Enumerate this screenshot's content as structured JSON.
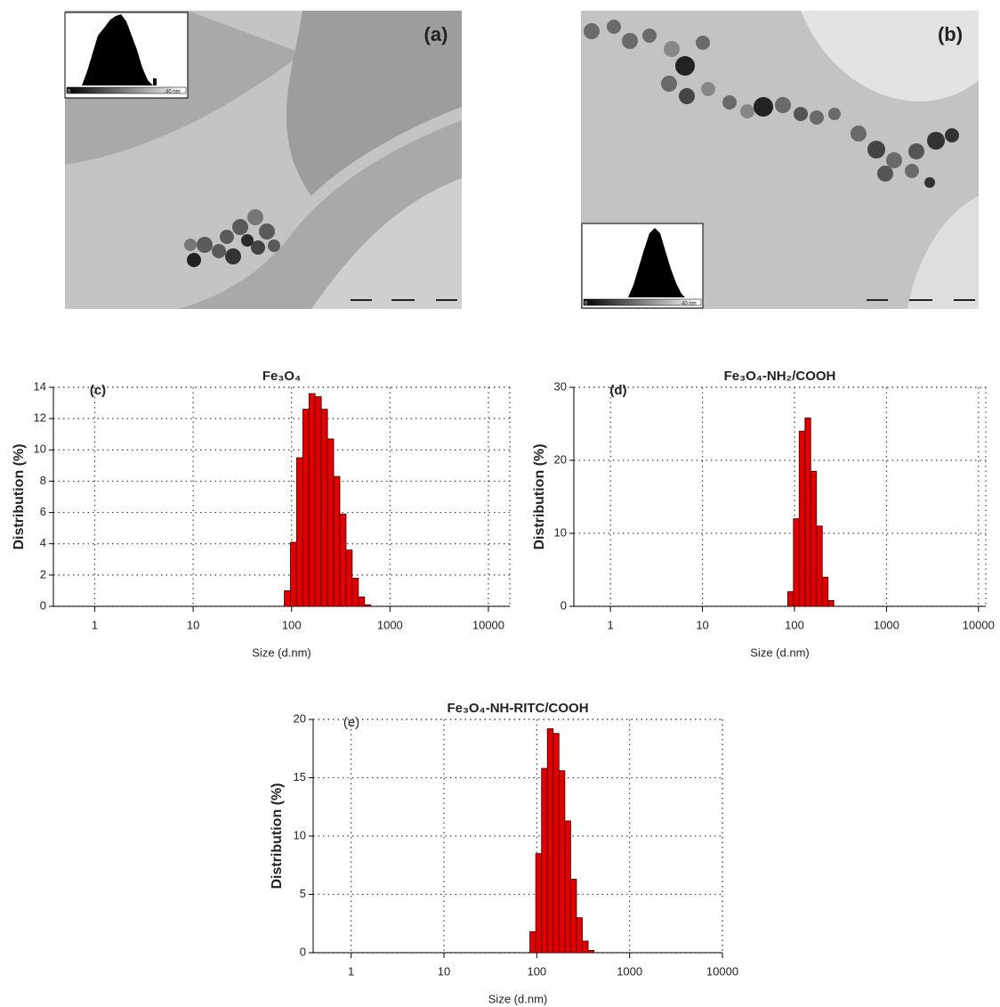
{
  "images": [
    {
      "label": "(a)",
      "inset_ticks": [
        "0",
        "40 nm"
      ]
    },
    {
      "label": "(b)",
      "inset_ticks": [
        "0",
        "40 nm"
      ]
    }
  ],
  "chart_data": [
    {
      "type": "histogram",
      "title": "Fe₃O₄",
      "annotation": "(c)",
      "x_label": "Size (d.nm)",
      "y_label": "Distribution (%)",
      "log_x": true,
      "grid": true,
      "color": "#e00000",
      "bins": [
        84.3,
        97.4,
        112.5,
        130.0,
        150.3,
        173.6,
        200.7,
        231.9,
        268.0,
        309.7,
        357.9,
        413.5,
        477.8,
        552.2,
        638.0
      ],
      "values": [
        1.0,
        4.1,
        9.5,
        12.6,
        13.6,
        13.4,
        12.6,
        10.7,
        8.3,
        5.9,
        3.6,
        1.8,
        0.6,
        0.1
      ],
      "xlim": [
        0.38,
        16500
      ],
      "xticks": [
        1,
        10,
        100,
        1000,
        10000
      ],
      "ylim": [
        0,
        14
      ],
      "yticks": [
        0,
        2,
        4,
        6,
        8,
        10,
        12,
        14
      ]
    },
    {
      "type": "histogram",
      "title": "Fe₃O₄-NH₂/COOH",
      "annotation": "(d)",
      "x_label": "Size (d.nm)",
      "y_label": "Distribution (%)",
      "log_x": true,
      "grid": true,
      "color": "#e00000",
      "bins": [
        84.3,
        97.4,
        112.5,
        130.0,
        150.3,
        173.6,
        200.7,
        231.9,
        268.0
      ],
      "values": [
        2.0,
        12.0,
        24.0,
        25.8,
        18.5,
        11.0,
        4.0,
        0.8
      ],
      "xlim": [
        0.4,
        12000
      ],
      "xticks": [
        1,
        10,
        100,
        1000,
        10000
      ],
      "ylim": [
        0,
        30
      ],
      "yticks": [
        0,
        10,
        20,
        30
      ]
    },
    {
      "type": "histogram",
      "title": "Fe₃O₄-NH-RITC/COOH",
      "annotation": "(e)",
      "x_label": "Size (d.nm)",
      "y_label": "Distribution (%)",
      "log_x": true,
      "grid": true,
      "color": "#e00000",
      "bins": [
        84.3,
        97.4,
        112.5,
        130.0,
        150.3,
        173.6,
        200.7,
        231.9,
        268.0,
        309.7,
        357.9,
        413.5
      ],
      "values": [
        1.8,
        8.5,
        15.8,
        19.2,
        18.8,
        15.6,
        11.3,
        6.3,
        3.0,
        1.0,
        0.2
      ],
      "xlim": [
        0.39,
        10000
      ],
      "xticks": [
        1,
        10,
        100,
        1000,
        10000
      ],
      "ylim": [
        0,
        20
      ],
      "yticks": [
        0,
        5,
        10,
        15,
        20
      ]
    }
  ]
}
